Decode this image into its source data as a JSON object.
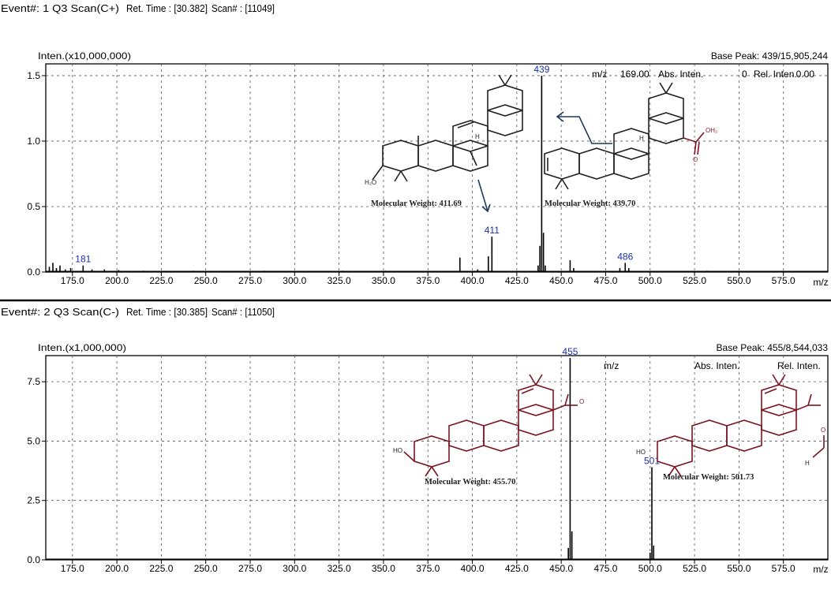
{
  "panels": [
    {
      "header": {
        "event": "Event#: 1 Q3 Scan(C+)",
        "ret_time": "Ret. Time : [30.382]",
        "scan": "Scan# : [11049]"
      },
      "inten_label": "Inten.(x10,000,000)",
      "base_peak": "Base Peak: 439/15,905,244",
      "readout": {
        "mz_label": "m/z",
        "mz_value": "169.00",
        "abs_label": "Abs. Inten.",
        "abs_value": "0",
        "rel_label": "Rel. Inten.",
        "rel_value": "0.00"
      },
      "mw_left": "Molecular Weight: 411.69",
      "mw_right": "Molecular Weight: 439.70",
      "struct_labels": {
        "ho_left": "H₂O",
        "h_left": "H",
        "oh2_right": "OH₂",
        "o_right": "O",
        "h_right": "H"
      }
    },
    {
      "header": {
        "event": "Event#: 2 Q3 Scan(C-)",
        "ret_time": "Ret. Time : [30.385]",
        "scan": "Scan# : [11050]"
      },
      "inten_label": "Inten.(x1,000,000)",
      "base_peak": "Base Peak: 455/8,544,033",
      "readout": {
        "mz_label": "m/z",
        "abs_label": "Abs. Inten.",
        "rel_label": "Rel. Inten."
      },
      "mw_left": "Molecular Weight: 455.70",
      "mw_right": "Molecular Weight: 501.73",
      "struct_labels": {
        "ho_left": "HO",
        "o_left": "O",
        "ho_right": "HO",
        "o_right": "O",
        "h_right": "H"
      }
    }
  ],
  "chart_data": [
    {
      "type": "line",
      "title": "",
      "xlabel": "m/z",
      "ylabel": "Inten.(x10,000,000)",
      "xlim": [
        160,
        600
      ],
      "ylim": [
        0,
        1.59
      ],
      "xticks": [
        "175.0",
        "200.0",
        "225.0",
        "250.0",
        "275.0",
        "300.0",
        "325.0",
        "350.0",
        "375.0",
        "400.0",
        "425.0",
        "450.0",
        "475.0",
        "500.0",
        "525.0",
        "550.0",
        "575.0"
      ],
      "xtick_values": [
        175,
        200,
        225,
        250,
        275,
        300,
        325,
        350,
        375,
        400,
        425,
        450,
        475,
        500,
        525,
        550,
        575
      ],
      "yticks": [
        "0.0",
        "0.5",
        "1.0",
        "1.5"
      ],
      "ytick_values": [
        0,
        0.5,
        1.0,
        1.5
      ],
      "grid": true,
      "peaks": [
        {
          "mz": 162,
          "i": 0.04
        },
        {
          "mz": 164,
          "i": 0.07
        },
        {
          "mz": 166,
          "i": 0.03
        },
        {
          "mz": 168,
          "i": 0.05
        },
        {
          "mz": 171,
          "i": 0.02
        },
        {
          "mz": 174,
          "i": 0.03
        },
        {
          "mz": 181,
          "i": 0.05
        },
        {
          "mz": 186,
          "i": 0.02
        },
        {
          "mz": 193,
          "i": 0.02
        },
        {
          "mz": 201,
          "i": 0.015
        },
        {
          "mz": 215,
          "i": 0.01
        },
        {
          "mz": 243,
          "i": 0.01
        },
        {
          "mz": 283,
          "i": 0.01
        },
        {
          "mz": 327,
          "i": 0.01
        },
        {
          "mz": 351,
          "i": 0.01
        },
        {
          "mz": 393,
          "i": 0.11
        },
        {
          "mz": 403,
          "i": 0.02
        },
        {
          "mz": 409,
          "i": 0.12
        },
        {
          "mz": 411,
          "i": 0.27
        },
        {
          "mz": 437,
          "i": 0.05
        },
        {
          "mz": 438,
          "i": 0.2
        },
        {
          "mz": 439,
          "i": 1.5
        },
        {
          "mz": 440,
          "i": 0.3
        },
        {
          "mz": 441,
          "i": 0.05
        },
        {
          "mz": 455,
          "i": 0.09
        },
        {
          "mz": 457,
          "i": 0.03
        },
        {
          "mz": 483,
          "i": 0.03
        },
        {
          "mz": 486,
          "i": 0.07
        },
        {
          "mz": 488,
          "i": 0.03
        },
        {
          "mz": 532,
          "i": 0.01
        }
      ],
      "peak_labels": [
        {
          "mz": 181,
          "i": 0.05,
          "text": "181"
        },
        {
          "mz": 411,
          "i": 0.27,
          "text": "411"
        },
        {
          "mz": 439,
          "i": 1.5,
          "text": "439"
        },
        {
          "mz": 486,
          "i": 0.07,
          "text": "486"
        }
      ]
    },
    {
      "type": "line",
      "title": "",
      "xlabel": "m/z",
      "ylabel": "Inten.(x1,000,000)",
      "xlim": [
        160,
        600
      ],
      "ylim": [
        0,
        8.6
      ],
      "xticks": [
        "175.0",
        "200.0",
        "225.0",
        "250.0",
        "275.0",
        "300.0",
        "325.0",
        "350.0",
        "375.0",
        "400.0",
        "425.0",
        "450.0",
        "475.0",
        "500.0",
        "525.0",
        "550.0",
        "575.0"
      ],
      "xtick_values": [
        175,
        200,
        225,
        250,
        275,
        300,
        325,
        350,
        375,
        400,
        425,
        450,
        475,
        500,
        525,
        550,
        575
      ],
      "yticks": [
        "0.0",
        "2.5",
        "5.0",
        "7.5"
      ],
      "ytick_values": [
        0,
        2.5,
        5.0,
        7.5
      ],
      "grid": true,
      "peaks": [
        {
          "mz": 454,
          "i": 0.5
        },
        {
          "mz": 455,
          "i": 8.5
        },
        {
          "mz": 456,
          "i": 1.2
        },
        {
          "mz": 500,
          "i": 0.3
        },
        {
          "mz": 501,
          "i": 3.9
        },
        {
          "mz": 502,
          "i": 0.6
        }
      ],
      "peak_labels": [
        {
          "mz": 455,
          "i": 8.5,
          "text": "455"
        },
        {
          "mz": 501,
          "i": 3.9,
          "text": "501"
        }
      ]
    }
  ],
  "colors": {
    "frame": "#000000",
    "grid": "#555555",
    "spectrum": "#000000",
    "peak_label": "#1a2fa8",
    "structure": "#7a1520",
    "arrow": "#1f3a5a",
    "hl_bar": "#1a1a1a"
  }
}
